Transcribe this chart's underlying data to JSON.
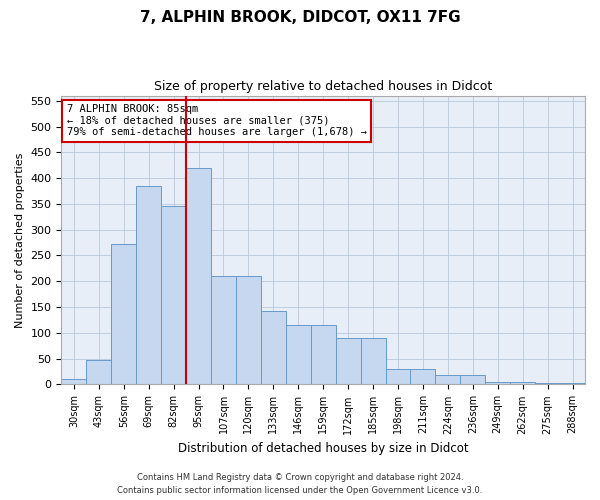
{
  "title1": "7, ALPHIN BROOK, DIDCOT, OX11 7FG",
  "title2": "Size of property relative to detached houses in Didcot",
  "xlabel": "Distribution of detached houses by size in Didcot",
  "ylabel": "Number of detached properties",
  "categories": [
    "30sqm",
    "43sqm",
    "56sqm",
    "69sqm",
    "82sqm",
    "95sqm",
    "107sqm",
    "120sqm",
    "133sqm",
    "146sqm",
    "159sqm",
    "172sqm",
    "185sqm",
    "198sqm",
    "211sqm",
    "224sqm",
    "236sqm",
    "249sqm",
    "262sqm",
    "275sqm",
    "288sqm"
  ],
  "values": [
    10,
    48,
    272,
    385,
    345,
    420,
    210,
    210,
    143,
    115,
    115,
    90,
    90,
    30,
    30,
    18,
    18,
    5,
    5,
    3,
    3
  ],
  "bar_color": "#c5d8ef",
  "bar_edge_color": "#6699cc",
  "vline_x_idx": 4,
  "vline_color": "#cc0000",
  "annotation_text": "7 ALPHIN BROOK: 85sqm\n← 18% of detached houses are smaller (375)\n79% of semi-detached houses are larger (1,678) →",
  "annotation_box_color": "#ffffff",
  "annotation_box_edge_color": "#cc0000",
  "footer1": "Contains HM Land Registry data © Crown copyright and database right 2024.",
  "footer2": "Contains public sector information licensed under the Open Government Licence v3.0.",
  "ylim": [
    0,
    560
  ],
  "yticks": [
    0,
    50,
    100,
    150,
    200,
    250,
    300,
    350,
    400,
    450,
    500,
    550
  ],
  "fig_bg_color": "#ffffff",
  "plot_bg_color": "#e8eef8"
}
